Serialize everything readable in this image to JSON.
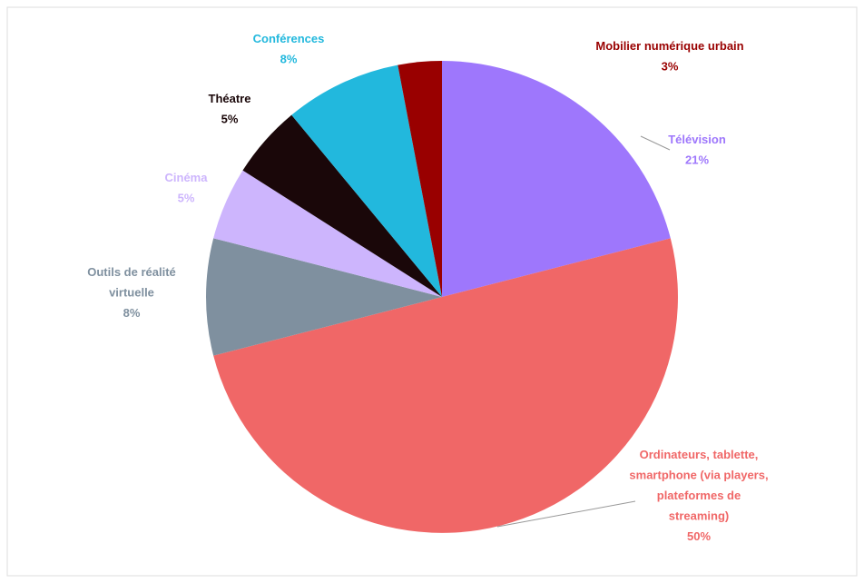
{
  "chart_data": {
    "type": "pie",
    "categories": [
      "Télévision",
      "Ordinateurs, tablette, smartphone (via players, plateformes de streaming)",
      "Outils de réalité virtuelle",
      "Cinéma",
      "Théatre",
      "Conférences",
      "Mobilier numérique urbain"
    ],
    "values": [
      21,
      50,
      8,
      5,
      5,
      8,
      3
    ],
    "value_labels": [
      "21%",
      "50%",
      "8%",
      "5%",
      "5%",
      "8%",
      "3%"
    ],
    "colors": [
      "#9e77fc",
      "#f06767",
      "#7f909f",
      "#cdb5fd",
      "#1a0709",
      "#22b8dd",
      "#990000"
    ]
  }
}
